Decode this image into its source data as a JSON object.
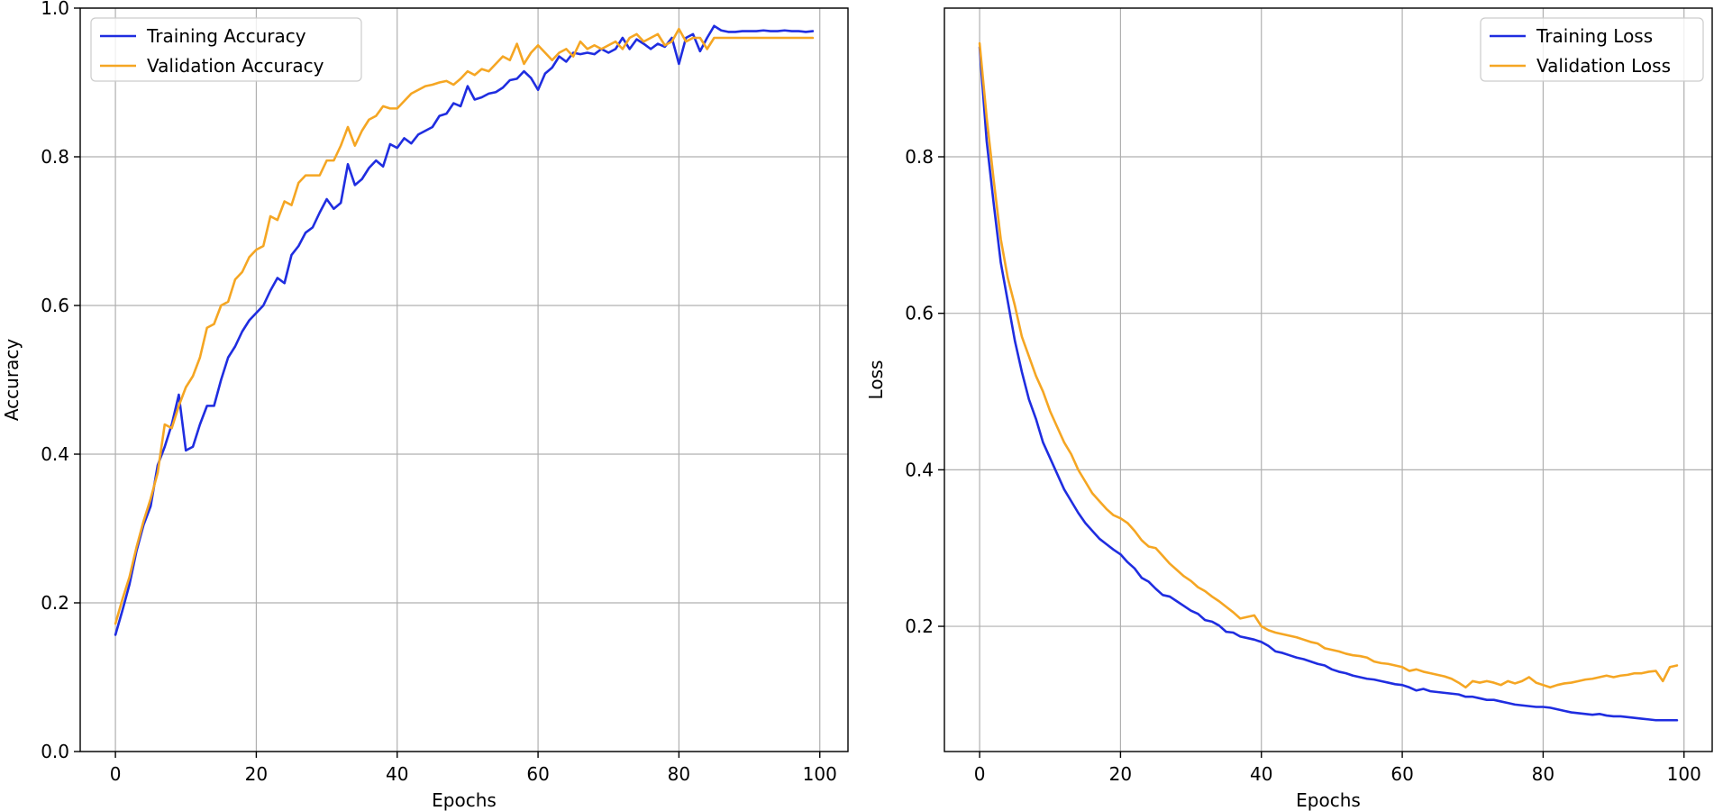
{
  "chart_data": [
    {
      "type": "line",
      "title": "",
      "xlabel": "Epochs",
      "ylabel": "Accuracy",
      "xlim": [
        -5,
        104
      ],
      "ylim": [
        0.0,
        1.0
      ],
      "xticks": [
        0,
        20,
        40,
        60,
        80,
        100
      ],
      "yticks": [
        0.0,
        0.2,
        0.4,
        0.6,
        0.8,
        1.0
      ],
      "xtick_labels": [
        "0",
        "20",
        "40",
        "60",
        "80",
        "100"
      ],
      "ytick_labels": [
        "0.0",
        "0.2",
        "0.4",
        "0.6",
        "0.8",
        "1.0"
      ],
      "grid": true,
      "legend_position": "top-left",
      "x": [
        0,
        1,
        2,
        3,
        4,
        5,
        6,
        7,
        8,
        9,
        10,
        11,
        12,
        13,
        14,
        15,
        16,
        17,
        18,
        19,
        20,
        21,
        22,
        23,
        24,
        25,
        26,
        27,
        28,
        29,
        30,
        31,
        32,
        33,
        34,
        35,
        36,
        37,
        38,
        39,
        40,
        41,
        42,
        43,
        44,
        45,
        46,
        47,
        48,
        49,
        50,
        51,
        52,
        53,
        54,
        55,
        56,
        57,
        58,
        59,
        60,
        61,
        62,
        63,
        64,
        65,
        66,
        67,
        68,
        69,
        70,
        71,
        72,
        73,
        74,
        75,
        76,
        77,
        78,
        79,
        80,
        81,
        82,
        83,
        84,
        85,
        86,
        87,
        88,
        89,
        90,
        91,
        92,
        93,
        94,
        95,
        96,
        97,
        98,
        99
      ],
      "series": [
        {
          "name": "Training Accuracy",
          "color": "#1f2de0",
          "values": [
            0.157,
            0.19,
            0.225,
            0.27,
            0.305,
            0.33,
            0.385,
            0.41,
            0.44,
            0.48,
            0.405,
            0.41,
            0.44,
            0.465,
            0.465,
            0.5,
            0.53,
            0.545,
            0.565,
            0.58,
            0.59,
            0.6,
            0.62,
            0.637,
            0.63,
            0.668,
            0.68,
            0.698,
            0.705,
            0.725,
            0.743,
            0.73,
            0.738,
            0.79,
            0.762,
            0.77,
            0.785,
            0.795,
            0.787,
            0.817,
            0.812,
            0.825,
            0.818,
            0.83,
            0.835,
            0.84,
            0.855,
            0.858,
            0.872,
            0.868,
            0.895,
            0.877,
            0.88,
            0.885,
            0.887,
            0.893,
            0.903,
            0.905,
            0.915,
            0.906,
            0.89,
            0.912,
            0.92,
            0.935,
            0.928,
            0.94,
            0.938,
            0.94,
            0.938,
            0.945,
            0.94,
            0.945,
            0.96,
            0.945,
            0.958,
            0.952,
            0.945,
            0.952,
            0.948,
            0.96,
            0.925,
            0.96,
            0.965,
            0.942,
            0.96,
            0.976,
            0.97,
            0.968,
            0.968,
            0.969,
            0.969,
            0.969,
            0.97,
            0.969,
            0.969,
            0.97,
            0.969,
            0.969,
            0.968,
            0.969
          ]
        },
        {
          "name": "Validation Accuracy",
          "color": "#f5a623",
          "values": [
            0.172,
            0.205,
            0.235,
            0.275,
            0.31,
            0.34,
            0.375,
            0.44,
            0.435,
            0.465,
            0.49,
            0.505,
            0.53,
            0.57,
            0.575,
            0.6,
            0.605,
            0.635,
            0.645,
            0.665,
            0.675,
            0.68,
            0.72,
            0.715,
            0.74,
            0.735,
            0.765,
            0.775,
            0.775,
            0.775,
            0.795,
            0.795,
            0.815,
            0.84,
            0.815,
            0.835,
            0.85,
            0.855,
            0.868,
            0.865,
            0.865,
            0.875,
            0.885,
            0.89,
            0.895,
            0.897,
            0.9,
            0.902,
            0.897,
            0.905,
            0.915,
            0.91,
            0.918,
            0.915,
            0.925,
            0.935,
            0.93,
            0.952,
            0.925,
            0.94,
            0.95,
            0.94,
            0.93,
            0.94,
            0.945,
            0.935,
            0.955,
            0.945,
            0.95,
            0.945,
            0.95,
            0.955,
            0.945,
            0.96,
            0.965,
            0.955,
            0.96,
            0.965,
            0.95,
            0.955,
            0.972,
            0.955,
            0.96,
            0.96,
            0.945,
            0.96,
            0.96,
            0.96,
            0.96,
            0.96,
            0.96,
            0.96,
            0.96,
            0.96,
            0.96,
            0.96,
            0.96,
            0.96,
            0.96,
            0.96
          ]
        }
      ]
    },
    {
      "type": "line",
      "title": "",
      "xlabel": "Epochs",
      "ylabel": "Loss",
      "xlim": [
        -5,
        104
      ],
      "ylim": [
        0.04,
        0.99
      ],
      "xticks": [
        0,
        20,
        40,
        60,
        80,
        100
      ],
      "yticks": [
        0.2,
        0.4,
        0.6,
        0.8
      ],
      "xtick_labels": [
        "0",
        "20",
        "40",
        "60",
        "80",
        "100"
      ],
      "ytick_labels": [
        "0.2",
        "0.4",
        "0.6",
        "0.8"
      ],
      "grid": true,
      "legend_position": "top-right",
      "x": [
        0,
        1,
        2,
        3,
        4,
        5,
        6,
        7,
        8,
        9,
        10,
        11,
        12,
        13,
        14,
        15,
        16,
        17,
        18,
        19,
        20,
        21,
        22,
        23,
        24,
        25,
        26,
        27,
        28,
        29,
        30,
        31,
        32,
        33,
        34,
        35,
        36,
        37,
        38,
        39,
        40,
        41,
        42,
        43,
        44,
        45,
        46,
        47,
        48,
        49,
        50,
        51,
        52,
        53,
        54,
        55,
        56,
        57,
        58,
        59,
        60,
        61,
        62,
        63,
        64,
        65,
        66,
        67,
        68,
        69,
        70,
        71,
        72,
        73,
        74,
        75,
        76,
        77,
        78,
        79,
        80,
        81,
        82,
        83,
        84,
        85,
        86,
        87,
        88,
        89,
        90,
        91,
        92,
        93,
        94,
        95,
        96,
        97,
        98,
        99
      ],
      "series": [
        {
          "name": "Training Loss",
          "color": "#1f2de0",
          "values": [
            0.94,
            0.82,
            0.74,
            0.665,
            0.615,
            0.565,
            0.525,
            0.49,
            0.465,
            0.435,
            0.415,
            0.395,
            0.375,
            0.36,
            0.345,
            0.332,
            0.322,
            0.312,
            0.305,
            0.298,
            0.292,
            0.282,
            0.274,
            0.262,
            0.257,
            0.248,
            0.24,
            0.238,
            0.232,
            0.226,
            0.22,
            0.216,
            0.208,
            0.206,
            0.201,
            0.193,
            0.192,
            0.187,
            0.185,
            0.183,
            0.18,
            0.175,
            0.168,
            0.166,
            0.163,
            0.16,
            0.158,
            0.155,
            0.152,
            0.15,
            0.145,
            0.142,
            0.14,
            0.137,
            0.135,
            0.133,
            0.132,
            0.13,
            0.128,
            0.126,
            0.125,
            0.122,
            0.118,
            0.12,
            0.117,
            0.116,
            0.115,
            0.114,
            0.113,
            0.11,
            0.11,
            0.108,
            0.106,
            0.106,
            0.104,
            0.102,
            0.1,
            0.099,
            0.098,
            0.097,
            0.097,
            0.096,
            0.094,
            0.092,
            0.09,
            0.089,
            0.088,
            0.087,
            0.088,
            0.086,
            0.085,
            0.085,
            0.084,
            0.083,
            0.082,
            0.081,
            0.08,
            0.08,
            0.08,
            0.08
          ]
        },
        {
          "name": "Validation Loss",
          "color": "#f5a623",
          "values": [
            0.945,
            0.85,
            0.77,
            0.695,
            0.645,
            0.61,
            0.57,
            0.545,
            0.52,
            0.5,
            0.475,
            0.455,
            0.435,
            0.42,
            0.4,
            0.385,
            0.37,
            0.36,
            0.35,
            0.342,
            0.338,
            0.332,
            0.322,
            0.31,
            0.302,
            0.3,
            0.29,
            0.28,
            0.272,
            0.264,
            0.258,
            0.25,
            0.245,
            0.238,
            0.232,
            0.225,
            0.218,
            0.21,
            0.212,
            0.214,
            0.2,
            0.195,
            0.192,
            0.19,
            0.188,
            0.186,
            0.183,
            0.18,
            0.178,
            0.172,
            0.17,
            0.168,
            0.165,
            0.163,
            0.162,
            0.16,
            0.155,
            0.153,
            0.152,
            0.15,
            0.148,
            0.143,
            0.145,
            0.142,
            0.14,
            0.138,
            0.136,
            0.133,
            0.128,
            0.122,
            0.13,
            0.128,
            0.13,
            0.128,
            0.125,
            0.13,
            0.127,
            0.13,
            0.135,
            0.128,
            0.125,
            0.122,
            0.125,
            0.127,
            0.128,
            0.13,
            0.132,
            0.133,
            0.135,
            0.137,
            0.135,
            0.137,
            0.138,
            0.14,
            0.14,
            0.142,
            0.143,
            0.13,
            0.148,
            0.15
          ]
        }
      ]
    }
  ]
}
